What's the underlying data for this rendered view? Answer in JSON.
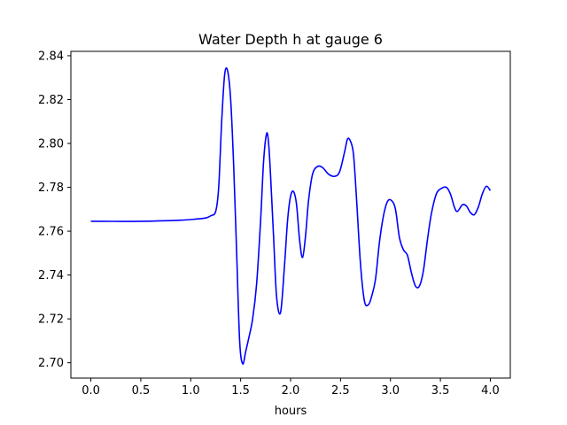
{
  "chart_data": {
    "type": "line",
    "title": "Water Depth h at gauge 6",
    "xlabel": "hours",
    "ylabel": "",
    "xlim": [
      -0.2,
      4.2
    ],
    "ylim": [
      2.693,
      2.842
    ],
    "xticks": [
      0.0,
      0.5,
      1.0,
      1.5,
      2.0,
      2.5,
      3.0,
      3.5,
      4.0
    ],
    "xtick_labels": [
      "0.0",
      "0.5",
      "1.0",
      "1.5",
      "2.0",
      "2.5",
      "3.0",
      "3.5",
      "4.0"
    ],
    "yticks": [
      2.7,
      2.72,
      2.74,
      2.76,
      2.78,
      2.8,
      2.82,
      2.84
    ],
    "ytick_labels": [
      "2.70",
      "2.72",
      "2.74",
      "2.76",
      "2.78",
      "2.80",
      "2.82",
      "2.84"
    ],
    "grid": false,
    "series": [
      {
        "color": "#0000ff",
        "x": [
          0.0,
          0.5,
          0.9,
          1.05,
          1.15,
          1.2,
          1.25,
          1.28,
          1.31,
          1.34,
          1.37,
          1.4,
          1.43,
          1.46,
          1.49,
          1.52,
          1.55,
          1.58,
          1.62,
          1.66,
          1.7,
          1.73,
          1.76,
          1.78,
          1.8,
          1.83,
          1.86,
          1.9,
          1.94,
          1.97,
          2.0,
          2.03,
          2.06,
          2.09,
          2.12,
          2.15,
          2.18,
          2.22,
          2.27,
          2.32,
          2.38,
          2.44,
          2.49,
          2.54,
          2.57,
          2.6,
          2.63,
          2.66,
          2.7,
          2.74,
          2.78,
          2.81,
          2.85,
          2.89,
          2.93,
          2.97,
          3.01,
          3.05,
          3.09,
          3.13,
          3.17,
          3.21,
          3.25,
          3.29,
          3.33,
          3.37,
          3.41,
          3.46,
          3.51,
          3.56,
          3.6,
          3.64,
          3.67,
          3.72,
          3.76,
          3.8,
          3.84,
          3.88,
          3.92,
          3.96,
          4.0
        ],
        "y": [
          2.7645,
          2.7645,
          2.765,
          2.7655,
          2.766,
          2.767,
          2.769,
          2.78,
          2.81,
          2.8315,
          2.833,
          2.82,
          2.79,
          2.75,
          2.71,
          2.6995,
          2.705,
          2.711,
          2.72,
          2.736,
          2.765,
          2.792,
          2.8045,
          2.8,
          2.785,
          2.757,
          2.73,
          2.723,
          2.745,
          2.765,
          2.776,
          2.778,
          2.772,
          2.756,
          2.748,
          2.758,
          2.774,
          2.786,
          2.7895,
          2.789,
          2.786,
          2.785,
          2.787,
          2.796,
          2.802,
          2.801,
          2.795,
          2.775,
          2.745,
          2.728,
          2.7265,
          2.73,
          2.738,
          2.755,
          2.767,
          2.7735,
          2.774,
          2.77,
          2.757,
          2.7515,
          2.749,
          2.741,
          2.735,
          2.735,
          2.742,
          2.756,
          2.768,
          2.777,
          2.7795,
          2.78,
          2.777,
          2.771,
          2.769,
          2.772,
          2.7715,
          2.7685,
          2.7675,
          2.771,
          2.777,
          2.7805,
          2.7785
        ]
      }
    ]
  }
}
